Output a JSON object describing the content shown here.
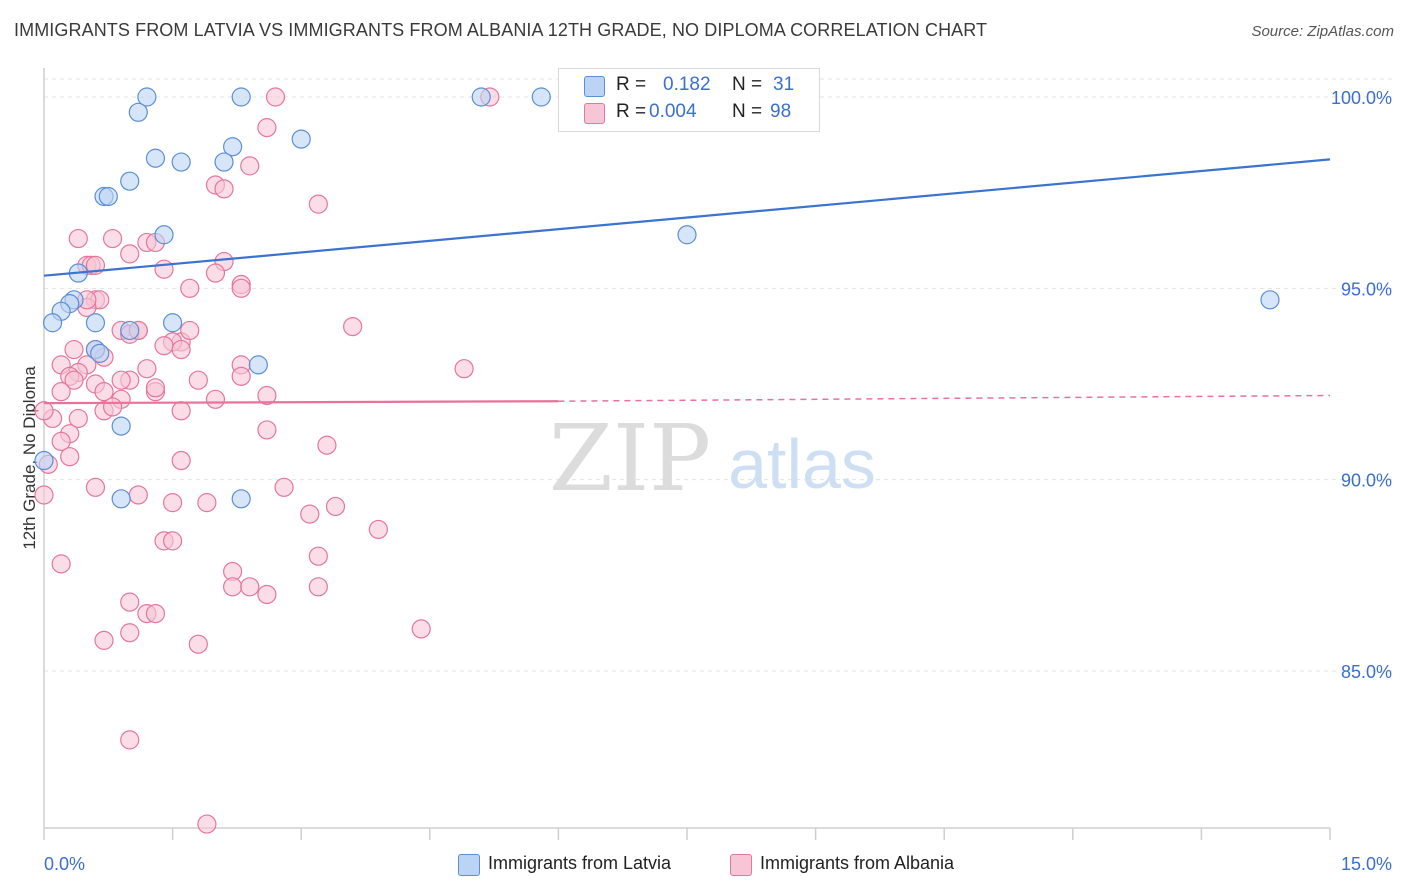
{
  "header": {
    "title": "IMMIGRANTS FROM LATVIA VS IMMIGRANTS FROM ALBANIA 12TH GRADE, NO DIPLOMA CORRELATION CHART",
    "source": "Source: ZipAtlas.com"
  },
  "watermark": {
    "zip": "ZIP",
    "atlas": "atlas"
  },
  "legend": {
    "latvia": {
      "r_label": "R =",
      "r_value": "0.182",
      "n_label": "N =",
      "n_value": "31"
    },
    "albania": {
      "r_label": "R =",
      "r_value": "0.004",
      "n_label": "N =",
      "n_value": "98"
    }
  },
  "bottom_legend": {
    "latvia_label": "Immigrants from Latvia",
    "albania_label": "Immigrants from Albania"
  },
  "chart_data": {
    "type": "scatter",
    "ylabel": "12th Grade, No Diploma",
    "xlim": [
      0.0,
      15.0
    ],
    "ylim": [
      80.0,
      100.7
    ],
    "x_tick_labels": [
      {
        "value": 0.0,
        "label": "0.0%"
      },
      {
        "value": 15.0,
        "label": "15.0%"
      }
    ],
    "y_tick_labels": [
      {
        "value": 85.0,
        "label": "85.0%"
      },
      {
        "value": 90.0,
        "label": "90.0%"
      },
      {
        "value": 95.0,
        "label": "95.0%"
      },
      {
        "value": 100.0,
        "label": "100.0%"
      }
    ],
    "grid": "horizontal dashed",
    "colors": {
      "latvia_fill": "#bcd4f4",
      "latvia_stroke": "#5b8fd6",
      "latvia_line": "#3b73d1",
      "albania_fill": "#f7c6d6",
      "albania_stroke": "#e5779d",
      "albania_line": "#e8729b",
      "tick_label": "#3b6fcf"
    },
    "series": [
      {
        "name": "Immigrants from Latvia",
        "trend": {
          "x": [
            0.0,
            15.0
          ],
          "y": [
            95.33,
            98.37
          ]
        },
        "points": [
          [
            1.2,
            100.0
          ],
          [
            1.1,
            99.6
          ],
          [
            2.3,
            100.0
          ],
          [
            5.1,
            100.0
          ],
          [
            5.8,
            100.0
          ],
          [
            2.2,
            98.7
          ],
          [
            3.0,
            98.9
          ],
          [
            1.3,
            98.4
          ],
          [
            1.6,
            98.3
          ],
          [
            2.1,
            98.3
          ],
          [
            1.0,
            97.8
          ],
          [
            0.7,
            97.4
          ],
          [
            0.75,
            97.4
          ],
          [
            1.4,
            96.4
          ],
          [
            0.4,
            95.4
          ],
          [
            0.35,
            94.7
          ],
          [
            0.3,
            94.6
          ],
          [
            0.2,
            94.4
          ],
          [
            0.1,
            94.1
          ],
          [
            0.6,
            94.1
          ],
          [
            1.5,
            94.1
          ],
          [
            1.0,
            93.9
          ],
          [
            0.6,
            93.4
          ],
          [
            0.65,
            93.3
          ],
          [
            2.5,
            93.0
          ],
          [
            0.9,
            91.4
          ],
          [
            0.0,
            90.5
          ],
          [
            0.9,
            89.5
          ],
          [
            2.3,
            89.5
          ],
          [
            7.5,
            96.4
          ],
          [
            14.3,
            94.7
          ]
        ]
      },
      {
        "name": "Immigrants from Albania",
        "trend": {
          "x": [
            0.0,
            6.0
          ],
          "y": [
            92.0,
            92.05
          ]
        },
        "trend_dashed": {
          "x": [
            6.0,
            15.0
          ],
          "y": [
            92.05,
            92.2
          ]
        },
        "points": [
          [
            2.7,
            100.0
          ],
          [
            5.2,
            100.0
          ],
          [
            2.6,
            99.2
          ],
          [
            2.4,
            98.2
          ],
          [
            2.0,
            97.7
          ],
          [
            2.1,
            97.6
          ],
          [
            3.2,
            97.2
          ],
          [
            0.4,
            96.3
          ],
          [
            0.8,
            96.3
          ],
          [
            1.2,
            96.2
          ],
          [
            1.3,
            96.2
          ],
          [
            1.0,
            95.9
          ],
          [
            0.5,
            95.6
          ],
          [
            0.55,
            95.6
          ],
          [
            2.1,
            95.7
          ],
          [
            2.0,
            95.4
          ],
          [
            2.3,
            95.1
          ],
          [
            2.3,
            95.0
          ],
          [
            1.7,
            95.0
          ],
          [
            0.6,
            94.7
          ],
          [
            0.65,
            94.7
          ],
          [
            0.5,
            94.5
          ],
          [
            1.1,
            93.9
          ],
          [
            0.9,
            93.9
          ],
          [
            1.0,
            93.8
          ],
          [
            1.6,
            93.6
          ],
          [
            1.5,
            93.6
          ],
          [
            1.4,
            93.5
          ],
          [
            1.6,
            93.4
          ],
          [
            0.6,
            93.4
          ],
          [
            0.7,
            93.2
          ],
          [
            1.7,
            93.9
          ],
          [
            3.6,
            94.0
          ],
          [
            0.2,
            93.0
          ],
          [
            0.5,
            93.0
          ],
          [
            0.4,
            92.8
          ],
          [
            0.3,
            92.7
          ],
          [
            0.35,
            92.6
          ],
          [
            1.2,
            92.9
          ],
          [
            2.3,
            93.0
          ],
          [
            2.3,
            92.7
          ],
          [
            1.8,
            92.6
          ],
          [
            1.0,
            92.6
          ],
          [
            0.6,
            92.5
          ],
          [
            0.2,
            92.3
          ],
          [
            0.7,
            92.3
          ],
          [
            0.9,
            92.1
          ],
          [
            1.3,
            92.3
          ],
          [
            4.9,
            92.9
          ],
          [
            1.6,
            91.8
          ],
          [
            0.1,
            91.6
          ],
          [
            0.4,
            91.6
          ],
          [
            0.7,
            91.8
          ],
          [
            2.0,
            92.1
          ],
          [
            2.6,
            92.2
          ],
          [
            0.3,
            91.2
          ],
          [
            0.2,
            91.0
          ],
          [
            2.6,
            91.3
          ],
          [
            3.3,
            90.9
          ],
          [
            1.6,
            90.5
          ],
          [
            0.3,
            90.6
          ],
          [
            0.6,
            89.8
          ],
          [
            1.1,
            89.6
          ],
          [
            1.5,
            89.4
          ],
          [
            1.9,
            89.4
          ],
          [
            2.8,
            89.8
          ],
          [
            3.4,
            89.3
          ],
          [
            3.1,
            89.1
          ],
          [
            3.9,
            88.7
          ],
          [
            0.0,
            89.6
          ],
          [
            1.4,
            88.4
          ],
          [
            1.5,
            88.4
          ],
          [
            3.2,
            88.0
          ],
          [
            0.2,
            87.8
          ],
          [
            2.2,
            87.6
          ],
          [
            2.2,
            87.2
          ],
          [
            2.4,
            87.2
          ],
          [
            2.6,
            87.0
          ],
          [
            3.2,
            87.2
          ],
          [
            1.0,
            86.8
          ],
          [
            1.2,
            86.5
          ],
          [
            1.3,
            86.5
          ],
          [
            1.0,
            86.0
          ],
          [
            0.7,
            85.8
          ],
          [
            1.8,
            85.7
          ],
          [
            4.4,
            86.1
          ],
          [
            1.0,
            83.2
          ],
          [
            1.9,
            81.0
          ],
          [
            0.0,
            91.8
          ],
          [
            0.05,
            90.4
          ],
          [
            0.6,
            95.6
          ],
          [
            1.4,
            95.5
          ],
          [
            0.5,
            94.7
          ],
          [
            0.35,
            93.4
          ],
          [
            0.9,
            92.6
          ],
          [
            1.1,
            93.9
          ],
          [
            1.3,
            92.4
          ],
          [
            0.8,
            91.9
          ]
        ]
      }
    ]
  }
}
